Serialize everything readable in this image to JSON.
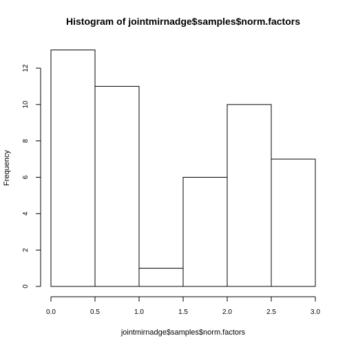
{
  "chart_data": {
    "type": "bar",
    "title": "Histogram of jointmirnadge$samples$norm.factors",
    "xlabel": "jointmirnadge$samples$norm.factors",
    "ylabel": "Frequency",
    "bins": [
      {
        "from": 0.0,
        "to": 0.5,
        "count": 13
      },
      {
        "from": 0.5,
        "to": 1.0,
        "count": 11
      },
      {
        "from": 1.0,
        "to": 1.5,
        "count": 1
      },
      {
        "from": 1.5,
        "to": 2.0,
        "count": 6
      },
      {
        "from": 2.0,
        "to": 2.5,
        "count": 10
      },
      {
        "from": 2.5,
        "to": 3.0,
        "count": 7
      }
    ],
    "xlim": [
      0,
      3
    ],
    "ylim": [
      0,
      13
    ],
    "x_ticks": [
      "0.0",
      "0.5",
      "1.0",
      "1.5",
      "2.0",
      "2.5",
      "3.0"
    ],
    "y_ticks": [
      "0",
      "2",
      "4",
      "6",
      "8",
      "10",
      "12"
    ],
    "grid": false,
    "bar_fill": "#ffffff",
    "bar_stroke": "#000000"
  }
}
